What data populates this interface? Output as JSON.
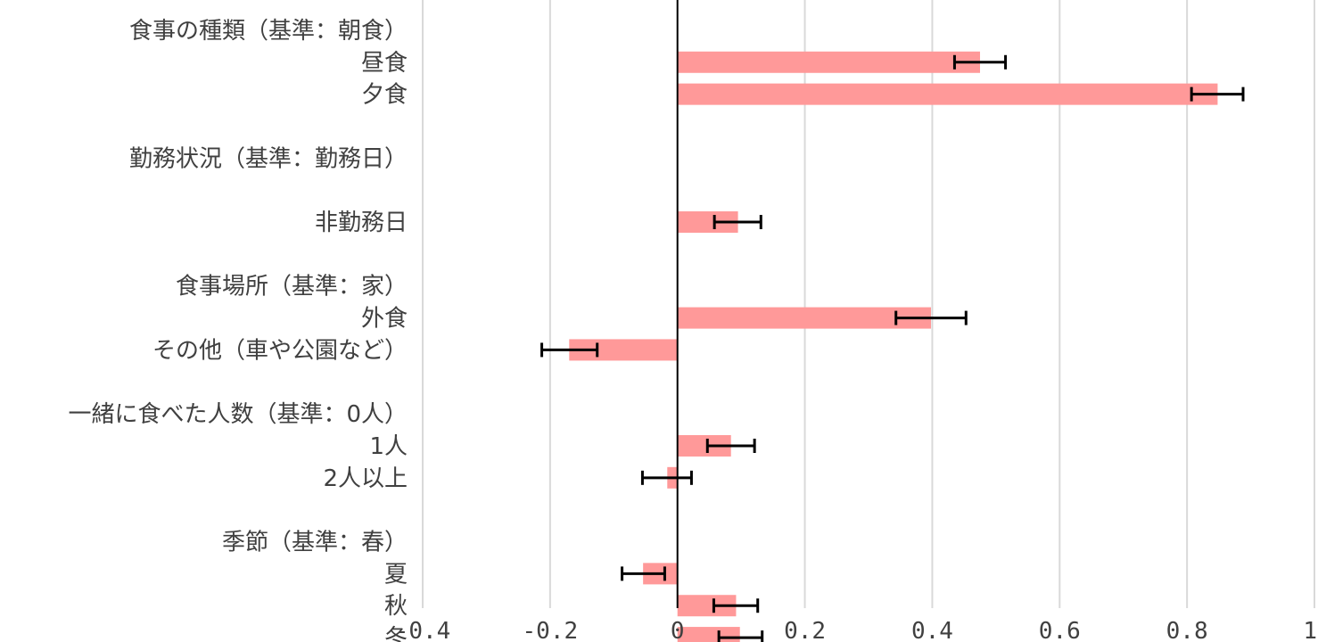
{
  "chart_data": {
    "type": "bar",
    "orientation": "horizontal",
    "title": "",
    "xlabel": "",
    "ylabel": "",
    "xlim": [
      -0.4,
      1
    ],
    "x_ticks": [
      -0.4,
      -0.2,
      0,
      0.2,
      0.4,
      0.6,
      0.8,
      1
    ],
    "x_tick_labels": [
      "-0.4",
      "-0.2",
      "0",
      "0.2",
      "0.4",
      "0.6",
      "0.8",
      "1"
    ],
    "grid": true,
    "legend": "none",
    "bar_color": "#ff9999",
    "rows": [
      {
        "label": "食事の種類（基準：朝食）",
        "kind": "group"
      },
      {
        "label": "昼食",
        "kind": "item",
        "value": 0.475,
        "err_low": 0.435,
        "err_high": 0.515
      },
      {
        "label": "夕食",
        "kind": "item",
        "value": 0.848,
        "err_low": 0.807,
        "err_high": 0.888
      },
      {
        "label": "",
        "kind": "spacer"
      },
      {
        "label": "勤務状況（基準：勤務日）",
        "kind": "group"
      },
      {
        "label": "",
        "kind": "spacer"
      },
      {
        "label": "非勤務日",
        "kind": "item",
        "value": 0.095,
        "err_low": 0.058,
        "err_high": 0.131
      },
      {
        "label": "",
        "kind": "spacer"
      },
      {
        "label": "食事場所（基準：家）",
        "kind": "group"
      },
      {
        "label": "外食",
        "kind": "item",
        "value": 0.398,
        "err_low": 0.343,
        "err_high": 0.453
      },
      {
        "label": "その他（車や公園など）",
        "kind": "item",
        "value": -0.17,
        "err_low": -0.213,
        "err_high": -0.126
      },
      {
        "label": "",
        "kind": "spacer"
      },
      {
        "label": "一緒に食べた人数（基準：0人）",
        "kind": "group"
      },
      {
        "label": "1人",
        "kind": "item",
        "value": 0.084,
        "err_low": 0.047,
        "err_high": 0.121
      },
      {
        "label": "2人以上",
        "kind": "item",
        "value": -0.016,
        "err_low": -0.055,
        "err_high": 0.022
      },
      {
        "label": "",
        "kind": "spacer"
      },
      {
        "label": "季節（基準：春）",
        "kind": "group"
      },
      {
        "label": "夏",
        "kind": "item",
        "value": -0.054,
        "err_low": -0.087,
        "err_high": -0.02
      },
      {
        "label": "秋",
        "kind": "item",
        "value": 0.092,
        "err_low": 0.057,
        "err_high": 0.126
      },
      {
        "label": "冬",
        "kind": "item",
        "value": 0.098,
        "err_low": 0.065,
        "err_high": 0.133
      }
    ]
  }
}
